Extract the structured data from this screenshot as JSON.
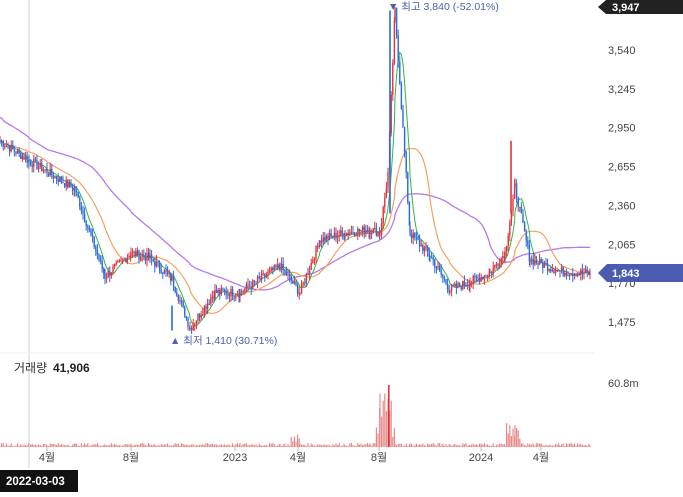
{
  "chart_data": {
    "type": "candlestick",
    "x_ticks": [
      "4월",
      "8월",
      "2023",
      "4월",
      "8월",
      "2024",
      "4월"
    ],
    "y_ticks": [
      1475,
      1770,
      2065,
      2360,
      2655,
      2950,
      3245,
      3540
    ],
    "ylim": [
      1300,
      3900
    ],
    "current_price": "1,843",
    "top_badge": "3,947",
    "high_label": "▼ 최고 3,840 (-52.01%)",
    "low_label": "▲ 최저 1,410 (30.71%)",
    "high_value": 3840,
    "low_value": 1410,
    "cursor_date": "2022-03-03",
    "volume_label": "거래량",
    "volume_value": "41,906",
    "volume_axis_label": "60.8m",
    "colors": {
      "up": "#e0343b",
      "down": "#2b6bd8",
      "ma_fast": "#36b24a",
      "ma_mid": "#f4a261",
      "ma_slow": "#b57be8",
      "badge_current": "#4a5bb0",
      "badge_top": "#222222"
    },
    "price_series": [
      {
        "x": "2022-02",
        "y": 2850
      },
      {
        "x": "2022-03",
        "y": 2700
      },
      {
        "x": "2022-04",
        "y": 2620
      },
      {
        "x": "2022-05",
        "y": 2480
      },
      {
        "x": "2022-06",
        "y": 1820
      },
      {
        "x": "2022-07",
        "y": 2000
      },
      {
        "x": "2022-08",
        "y": 1960
      },
      {
        "x": "2022-09",
        "y": 1800
      },
      {
        "x": "2022-10",
        "y": 1430
      },
      {
        "x": "2022-11",
        "y": 1700
      },
      {
        "x": "2022-12",
        "y": 1700
      },
      {
        "x": "2023-01",
        "y": 1800
      },
      {
        "x": "2023-02",
        "y": 1900
      },
      {
        "x": "2023-03",
        "y": 1700
      },
      {
        "x": "2023-04",
        "y": 2100
      },
      {
        "x": "2023-05",
        "y": 2150
      },
      {
        "x": "2023-06",
        "y": 2180
      },
      {
        "x": "2023-07",
        "y": 2150
      },
      {
        "x": "2023-08",
        "y": 2600
      },
      {
        "x": "2023-08-15",
        "y": 3840
      },
      {
        "x": "2023-09",
        "y": 2150
      },
      {
        "x": "2023-10",
        "y": 1980
      },
      {
        "x": "2023-11",
        "y": 1720
      },
      {
        "x": "2023-12",
        "y": 1780
      },
      {
        "x": "2024-01",
        "y": 1850
      },
      {
        "x": "2024-02",
        "y": 2000
      },
      {
        "x": "2024-03",
        "y": 2500
      },
      {
        "x": "2024-04",
        "y": 1950
      },
      {
        "x": "2024-05",
        "y": 1860
      },
      {
        "x": "2024-06",
        "y": 1843
      }
    ]
  }
}
